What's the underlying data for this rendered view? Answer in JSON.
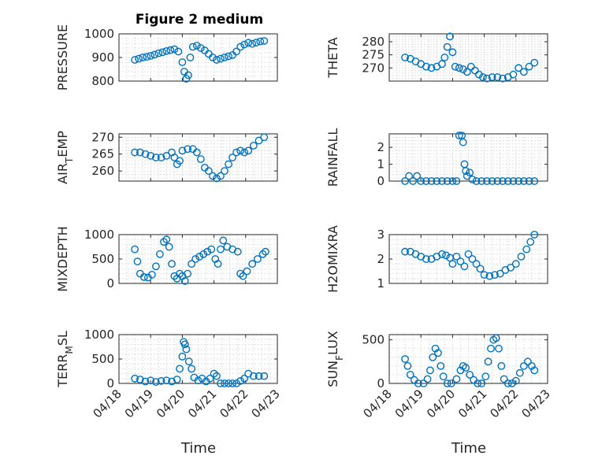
{
  "figure": {
    "title": "Figure 2 medium",
    "x_label": "Time"
  },
  "colors": {
    "marker": "#0072BD"
  },
  "chart_data": [
    {
      "type": "scatter",
      "ylabel": "PRESSURE",
      "ylim": [
        800,
        1000
      ],
      "yticks": [
        800,
        900,
        1000
      ],
      "xlim": [
        "04/18",
        "04/23"
      ],
      "xticks": [
        "04/18",
        "04/19",
        "04/20",
        "04/21",
        "04/22",
        "04/23"
      ],
      "grid": true,
      "marker": "circle",
      "points": [
        [
          "04/18 12:00",
          890
        ],
        [
          "04/18 15:00",
          895
        ],
        [
          "04/18 18:00",
          900
        ],
        [
          "04/18 21:00",
          903
        ],
        [
          "04/19 00:00",
          907
        ],
        [
          "04/19 03:00",
          912
        ],
        [
          "04/19 06:00",
          918
        ],
        [
          "04/19 09:00",
          922
        ],
        [
          "04/19 12:00",
          927
        ],
        [
          "04/19 15:00",
          931
        ],
        [
          "04/19 18:00",
          935
        ],
        [
          "04/19 21:00",
          925
        ],
        [
          "04/20 00:00",
          880
        ],
        [
          "04/20 01:30",
          840
        ],
        [
          "04/20 03:00",
          810
        ],
        [
          "04/20 04:30",
          825
        ],
        [
          "04/20 06:00",
          900
        ],
        [
          "04/20 08:00",
          945
        ],
        [
          "04/20 11:00",
          950
        ],
        [
          "04/20 14:00",
          940
        ],
        [
          "04/20 17:00",
          930
        ],
        [
          "04/20 20:00",
          915
        ],
        [
          "04/20 23:00",
          900
        ],
        [
          "04/21 02:00",
          890
        ],
        [
          "04/21 05:00",
          895
        ],
        [
          "04/21 08:00",
          900
        ],
        [
          "04/21 11:00",
          905
        ],
        [
          "04/21 14:00",
          910
        ],
        [
          "04/21 17:00",
          925
        ],
        [
          "04/21 20:00",
          945
        ],
        [
          "04/21 23:00",
          955
        ],
        [
          "04/22 02:00",
          962
        ],
        [
          "04/22 05:00",
          958
        ],
        [
          "04/22 08:00",
          963
        ],
        [
          "04/22 11:00",
          968
        ],
        [
          "04/22 14:00",
          970
        ]
      ]
    },
    {
      "type": "scatter",
      "ylabel": "THETA",
      "ylim": [
        265,
        283
      ],
      "yticks": [
        270,
        275,
        280
      ],
      "xlim": [
        "04/18",
        "04/23"
      ],
      "xticks": [
        "04/18",
        "04/19",
        "04/20",
        "04/21",
        "04/22",
        "04/23"
      ],
      "grid": true,
      "marker": "circle",
      "points": [
        [
          "04/18 12:00",
          274
        ],
        [
          "04/18 16:00",
          273.5
        ],
        [
          "04/18 20:00",
          272.5
        ],
        [
          "04/19 00:00",
          271.5
        ],
        [
          "04/19 04:00",
          270.5
        ],
        [
          "04/19 08:00",
          270
        ],
        [
          "04/19 12:00",
          270.5
        ],
        [
          "04/19 16:00",
          271.5
        ],
        [
          "04/19 18:00",
          274
        ],
        [
          "04/19 20:00",
          278
        ],
        [
          "04/19 22:00",
          282
        ],
        [
          "04/20 00:00",
          276
        ],
        [
          "04/20 02:00",
          270.5
        ],
        [
          "04/20 05:00",
          270
        ],
        [
          "04/20 08:00",
          269.5
        ],
        [
          "04/20 11:00",
          268.5
        ],
        [
          "04/20 14:00",
          270.5
        ],
        [
          "04/20 17:00",
          269
        ],
        [
          "04/20 20:00",
          267.5
        ],
        [
          "04/20 23:00",
          266.5
        ],
        [
          "04/21 02:00",
          266
        ],
        [
          "04/21 06:00",
          266.5
        ],
        [
          "04/21 10:00",
          266.5
        ],
        [
          "04/21 14:00",
          266
        ],
        [
          "04/21 18:00",
          266.5
        ],
        [
          "04/21 22:00",
          267.5
        ],
        [
          "04/22 02:00",
          270
        ],
        [
          "04/22 06:00",
          268.5
        ],
        [
          "04/22 10:00",
          270.5
        ],
        [
          "04/22 14:00",
          272
        ]
      ]
    },
    {
      "type": "scatter",
      "ylabel": "AIR_TEMP",
      "ylim": [
        257,
        271
      ],
      "yticks": [
        260,
        265,
        270
      ],
      "xlim": [
        "04/18",
        "04/23"
      ],
      "xticks": [
        "04/18",
        "04/19",
        "04/20",
        "04/21",
        "04/22",
        "04/23"
      ],
      "grid": true,
      "marker": "circle",
      "points": [
        [
          "04/18 12:00",
          265.5
        ],
        [
          "04/18 16:00",
          265.5
        ],
        [
          "04/18 20:00",
          265
        ],
        [
          "04/19 00:00",
          264.5
        ],
        [
          "04/19 04:00",
          264
        ],
        [
          "04/19 08:00",
          264
        ],
        [
          "04/19 12:00",
          264.5
        ],
        [
          "04/19 16:00",
          265.5
        ],
        [
          "04/19 18:00",
          264
        ],
        [
          "04/19 20:00",
          262
        ],
        [
          "04/19 22:00",
          263
        ],
        [
          "04/20 00:00",
          266
        ],
        [
          "04/20 04:00",
          266.5
        ],
        [
          "04/20 08:00",
          266.5
        ],
        [
          "04/20 11:00",
          265.5
        ],
        [
          "04/20 14:00",
          263.5
        ],
        [
          "04/20 17:00",
          261
        ],
        [
          "04/20 20:00",
          260
        ],
        [
          "04/20 23:00",
          258.5
        ],
        [
          "04/21 02:00",
          257.8
        ],
        [
          "04/21 05:00",
          258.5
        ],
        [
          "04/21 08:00",
          260
        ],
        [
          "04/21 11:00",
          262
        ],
        [
          "04/21 14:00",
          264
        ],
        [
          "04/21 17:00",
          265.5
        ],
        [
          "04/21 20:00",
          266
        ],
        [
          "04/21 23:00",
          265.5
        ],
        [
          "04/22 02:00",
          266
        ],
        [
          "04/22 06:00",
          267.5
        ],
        [
          "04/22 10:00",
          269
        ],
        [
          "04/22 14:00",
          270
        ]
      ]
    },
    {
      "type": "scatter",
      "ylabel": "RAINFALL",
      "ylim": [
        0,
        2.8
      ],
      "yticks": [
        0,
        1,
        2
      ],
      "xlim": [
        "04/18",
        "04/23"
      ],
      "xticks": [
        "04/18",
        "04/19",
        "04/20",
        "04/21",
        "04/22",
        "04/23"
      ],
      "grid": true,
      "marker": "circle",
      "points": [
        [
          "04/18 12:00",
          0
        ],
        [
          "04/18 15:00",
          0.3
        ],
        [
          "04/18 18:00",
          0
        ],
        [
          "04/18 21:00",
          0.3
        ],
        [
          "04/19 00:00",
          0
        ],
        [
          "04/19 04:00",
          0
        ],
        [
          "04/19 08:00",
          0
        ],
        [
          "04/19 12:00",
          0
        ],
        [
          "04/19 16:00",
          0
        ],
        [
          "04/19 20:00",
          0
        ],
        [
          "04/20 00:00",
          0
        ],
        [
          "04/20 03:00",
          0
        ],
        [
          "04/20 05:00",
          2.7
        ],
        [
          "04/20 07:00",
          2.7
        ],
        [
          "04/20 08:00",
          2.3
        ],
        [
          "04/20 09:00",
          1.0
        ],
        [
          "04/20 10:00",
          0.6
        ],
        [
          "04/20 11:00",
          0.3
        ],
        [
          "04/20 13:00",
          0.5
        ],
        [
          "04/20 15:00",
          0.1
        ],
        [
          "04/20 18:00",
          0
        ],
        [
          "04/20 22:00",
          0
        ],
        [
          "04/21 02:00",
          0
        ],
        [
          "04/21 06:00",
          0
        ],
        [
          "04/21 10:00",
          0
        ],
        [
          "04/21 14:00",
          0
        ],
        [
          "04/21 18:00",
          0
        ],
        [
          "04/21 22:00",
          0
        ],
        [
          "04/22 02:00",
          0
        ],
        [
          "04/22 06:00",
          0
        ],
        [
          "04/22 10:00",
          0
        ],
        [
          "04/22 14:00",
          0
        ]
      ]
    },
    {
      "type": "scatter",
      "ylabel": "MIXDEPTH",
      "ylim": [
        0,
        1000
      ],
      "yticks": [
        0,
        500,
        1000
      ],
      "xlim": [
        "04/18",
        "04/23"
      ],
      "xticks": [
        "04/18",
        "04/19",
        "04/20",
        "04/21",
        "04/22",
        "04/23"
      ],
      "grid": true,
      "marker": "circle",
      "points": [
        [
          "04/18 12:00",
          700
        ],
        [
          "04/18 14:00",
          450
        ],
        [
          "04/18 16:00",
          200
        ],
        [
          "04/18 19:00",
          130
        ],
        [
          "04/18 22:00",
          120
        ],
        [
          "04/19 01:00",
          180
        ],
        [
          "04/19 04:00",
          350
        ],
        [
          "04/19 07:00",
          600
        ],
        [
          "04/19 10:00",
          850
        ],
        [
          "04/19 12:00",
          900
        ],
        [
          "04/19 14:00",
          750
        ],
        [
          "04/19 16:00",
          400
        ],
        [
          "04/19 18:00",
          150
        ],
        [
          "04/19 20:00",
          100
        ],
        [
          "04/19 22:00",
          200
        ],
        [
          "04/20 00:00",
          150
        ],
        [
          "04/20 02:00",
          50
        ],
        [
          "04/20 04:00",
          200
        ],
        [
          "04/20 07:00",
          400
        ],
        [
          "04/20 10:00",
          500
        ],
        [
          "04/20 13:00",
          550
        ],
        [
          "04/20 16:00",
          600
        ],
        [
          "04/20 19:00",
          650
        ],
        [
          "04/20 22:00",
          700
        ],
        [
          "04/21 01:00",
          500
        ],
        [
          "04/21 03:00",
          400
        ],
        [
          "04/21 05:00",
          700
        ],
        [
          "04/21 07:00",
          880
        ],
        [
          "04/21 10:00",
          750
        ],
        [
          "04/21 14:00",
          700
        ],
        [
          "04/21 18:00",
          650
        ],
        [
          "04/21 20:00",
          200
        ],
        [
          "04/21 22:00",
          150
        ],
        [
          "04/22 01:00",
          250
        ],
        [
          "04/22 05:00",
          400
        ],
        [
          "04/22 09:00",
          500
        ],
        [
          "04/22 13:00",
          600
        ],
        [
          "04/22 15:00",
          650
        ]
      ]
    },
    {
      "type": "scatter",
      "ylabel": "H2OMIXRA",
      "ylim": [
        1,
        3
      ],
      "yticks": [
        1,
        2,
        3
      ],
      "xlim": [
        "04/18",
        "04/23"
      ],
      "xticks": [
        "04/18",
        "04/19",
        "04/20",
        "04/21",
        "04/22",
        "04/23"
      ],
      "grid": true,
      "marker": "circle",
      "points": [
        [
          "04/18 12:00",
          2.3
        ],
        [
          "04/18 16:00",
          2.3
        ],
        [
          "04/18 20:00",
          2.2
        ],
        [
          "04/19 00:00",
          2.1
        ],
        [
          "04/19 04:00",
          2.0
        ],
        [
          "04/19 08:00",
          2.0
        ],
        [
          "04/19 12:00",
          2.1
        ],
        [
          "04/19 16:00",
          2.2
        ],
        [
          "04/19 19:00",
          2.15
        ],
        [
          "04/19 22:00",
          2.05
        ],
        [
          "04/20 00:00",
          1.8
        ],
        [
          "04/20 03:00",
          2.1
        ],
        [
          "04/20 06:00",
          1.9
        ],
        [
          "04/20 09:00",
          1.7
        ],
        [
          "04/20 12:00",
          2.2
        ],
        [
          "04/20 15:00",
          2.0
        ],
        [
          "04/20 18:00",
          1.8
        ],
        [
          "04/20 21:00",
          1.6
        ],
        [
          "04/21 00:00",
          1.35
        ],
        [
          "04/21 04:00",
          1.3
        ],
        [
          "04/21 08:00",
          1.35
        ],
        [
          "04/21 12:00",
          1.4
        ],
        [
          "04/21 16:00",
          1.55
        ],
        [
          "04/21 20:00",
          1.65
        ],
        [
          "04/22 00:00",
          1.8
        ],
        [
          "04/22 04:00",
          2.1
        ],
        [
          "04/22 08:00",
          2.4
        ],
        [
          "04/22 11:00",
          2.7
        ],
        [
          "04/22 14:00",
          3.0
        ]
      ]
    },
    {
      "type": "scatter",
      "ylabel": "TERR_MSL",
      "ylim": [
        0,
        1000
      ],
      "yticks": [
        0,
        500,
        1000
      ],
      "xlim": [
        "04/18",
        "04/23"
      ],
      "xticks": [
        "04/18",
        "04/19",
        "04/20",
        "04/21",
        "04/22",
        "04/23"
      ],
      "grid": true,
      "marker": "circle",
      "points": [
        [
          "04/18 12:00",
          100
        ],
        [
          "04/18 16:00",
          80
        ],
        [
          "04/18 20:00",
          40
        ],
        [
          "04/19 00:00",
          60
        ],
        [
          "04/19 04:00",
          30
        ],
        [
          "04/19 08:00",
          50
        ],
        [
          "04/19 12:00",
          60
        ],
        [
          "04/19 16:00",
          40
        ],
        [
          "04/19 20:00",
          80
        ],
        [
          "04/19 22:00",
          300
        ],
        [
          "04/20 00:00",
          550
        ],
        [
          "04/20 01:00",
          850
        ],
        [
          "04/20 02:00",
          800
        ],
        [
          "04/20 03:00",
          700
        ],
        [
          "04/20 05:00",
          450
        ],
        [
          "04/20 07:00",
          300
        ],
        [
          "04/20 09:00",
          120
        ],
        [
          "04/20 12:00",
          60
        ],
        [
          "04/20 15:00",
          100
        ],
        [
          "04/20 18:00",
          40
        ],
        [
          "04/20 21:00",
          100
        ],
        [
          "04/21 00:00",
          200
        ],
        [
          "04/21 02:00",
          150
        ],
        [
          "04/21 05:00",
          0
        ],
        [
          "04/21 08:00",
          0
        ],
        [
          "04/21 11:00",
          0
        ],
        [
          "04/21 14:00",
          0
        ],
        [
          "04/21 17:00",
          0
        ],
        [
          "04/21 20:00",
          50
        ],
        [
          "04/21 23:00",
          100
        ],
        [
          "04/22 02:00",
          200
        ],
        [
          "04/22 06:00",
          150
        ],
        [
          "04/22 10:00",
          150
        ],
        [
          "04/22 14:00",
          150
        ]
      ]
    },
    {
      "type": "scatter",
      "ylabel": "SUN_FLUX",
      "ylim": [
        0,
        560
      ],
      "yticks": [
        0,
        500
      ],
      "xlim": [
        "04/18",
        "04/23"
      ],
      "xticks": [
        "04/18",
        "04/19",
        "04/20",
        "04/21",
        "04/22",
        "04/23"
      ],
      "grid": true,
      "marker": "circle",
      "points": [
        [
          "04/18 12:00",
          280
        ],
        [
          "04/18 14:00",
          200
        ],
        [
          "04/18 16:00",
          100
        ],
        [
          "04/18 19:00",
          40
        ],
        [
          "04/18 22:00",
          0
        ],
        [
          "04/19 02:00",
          0
        ],
        [
          "04/19 05:00",
          50
        ],
        [
          "04/19 07:00",
          150
        ],
        [
          "04/19 09:00",
          300
        ],
        [
          "04/19 11:00",
          400
        ],
        [
          "04/19 13:00",
          350
        ],
        [
          "04/19 15:00",
          200
        ],
        [
          "04/19 17:00",
          80
        ],
        [
          "04/19 20:00",
          0
        ],
        [
          "04/19 23:00",
          0
        ],
        [
          "04/20 03:00",
          50
        ],
        [
          "04/20 06:00",
          150
        ],
        [
          "04/20 08:00",
          200
        ],
        [
          "04/20 10:00",
          180
        ],
        [
          "04/20 13:00",
          100
        ],
        [
          "04/20 16:00",
          40
        ],
        [
          "04/20 19:00",
          0
        ],
        [
          "04/20 22:00",
          0
        ],
        [
          "04/21 01:00",
          80
        ],
        [
          "04/21 03:00",
          250
        ],
        [
          "04/21 05:00",
          400
        ],
        [
          "04/21 07:00",
          500
        ],
        [
          "04/21 09:00",
          520
        ],
        [
          "04/21 11:00",
          400
        ],
        [
          "04/21 13:00",
          200
        ],
        [
          "04/21 15:00",
          50
        ],
        [
          "04/21 18:00",
          0
        ],
        [
          "04/21 21:00",
          0
        ],
        [
          "04/22 00:00",
          30
        ],
        [
          "04/22 03:00",
          120
        ],
        [
          "04/22 06:00",
          200
        ],
        [
          "04/22 09:00",
          250
        ],
        [
          "04/22 12:00",
          200
        ],
        [
          "04/22 14:00",
          150
        ]
      ]
    }
  ]
}
